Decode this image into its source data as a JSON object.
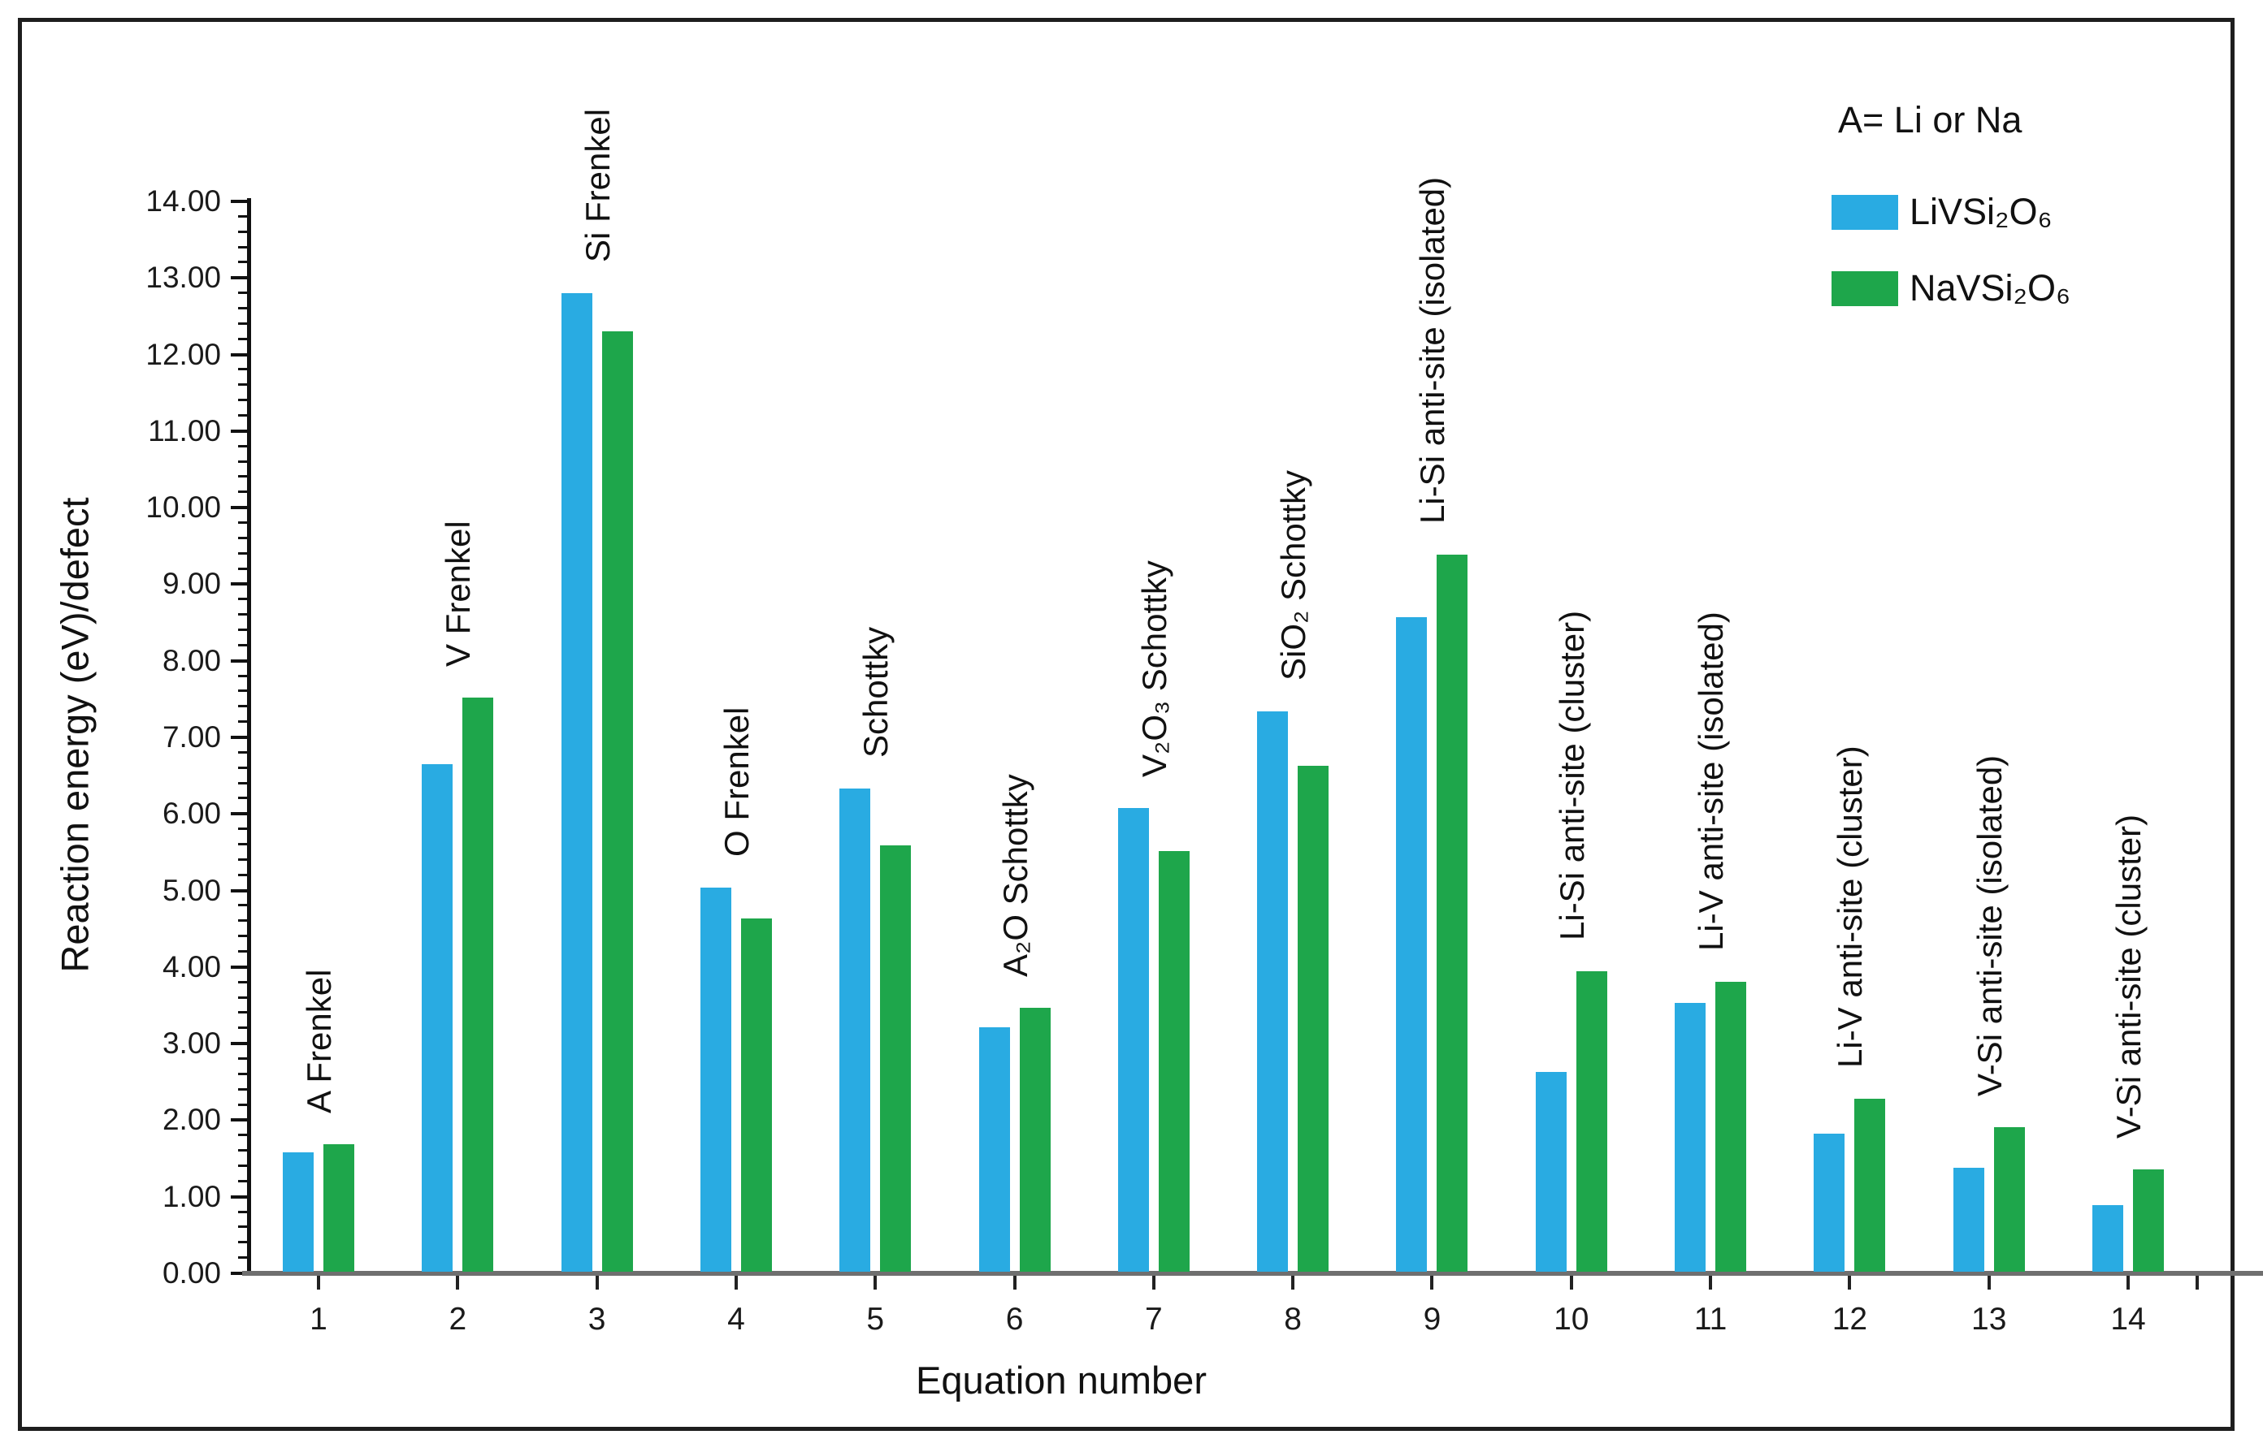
{
  "figure": {
    "legend_note": "A= Li or Na"
  },
  "chart_data": {
    "type": "bar",
    "title": "",
    "xlabel": "Equation number",
    "ylabel": "Reaction energy (eV)/defect",
    "ylim": [
      0,
      14
    ],
    "ytick_step": 1.0,
    "minor_tick_step": 0.2,
    "grid": false,
    "legend_position": "top-right-inside",
    "ytick_labels": [
      "0.00",
      "1.00",
      "2.00",
      "3.00",
      "4.00",
      "5.00",
      "6.00",
      "7.00",
      "8.00",
      "9.00",
      "10.00",
      "11.00",
      "12.00",
      "13.00",
      "14.00"
    ],
    "categories": [
      "1",
      "2",
      "3",
      "4",
      "5",
      "6",
      "7",
      "8",
      "9",
      "10",
      "11",
      "12",
      "13",
      "14"
    ],
    "bar_group_labels": [
      "A Frenkel",
      "V Frenkel",
      "Si Frenkel",
      "O Frenkel",
      "Schottky",
      "A₂O Schottky",
      "V₂O₃ Schottky",
      "SiO₂ Schottky",
      "Li-Si anti-site (isolated)",
      "Li-Si anti-site (cluster)",
      "Li-V anti-site (isolated)",
      "Li-V anti-site (cluster)",
      "V-Si anti-site (isolated)",
      "V-Si anti-site (cluster)"
    ],
    "series": [
      {
        "name": "LiVSi₂O₆",
        "color": "#29ABE2",
        "values": [
          1.56,
          6.63,
          12.78,
          5.02,
          6.31,
          3.19,
          6.06,
          7.32,
          8.55,
          2.61,
          3.51,
          1.8,
          1.36,
          0.87
        ]
      },
      {
        "name": "NaVSi₂O₆",
        "color": "#1EA64B",
        "values": [
          1.66,
          7.5,
          12.28,
          4.61,
          5.57,
          3.45,
          5.49,
          6.61,
          9.36,
          3.92,
          3.79,
          2.26,
          1.89,
          1.34
        ]
      }
    ]
  }
}
